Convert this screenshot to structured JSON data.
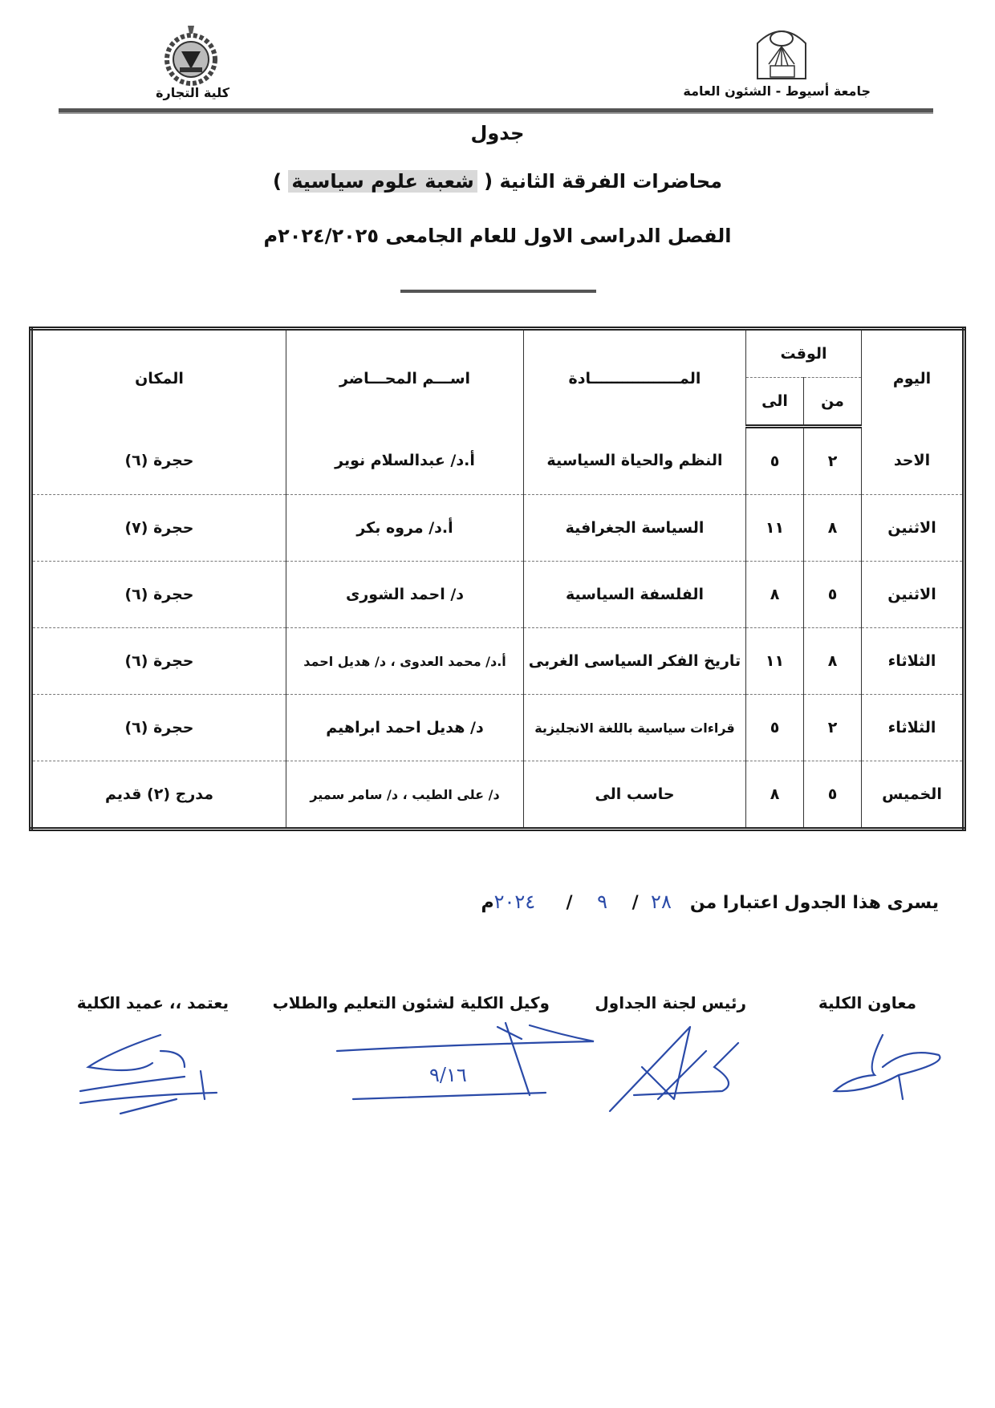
{
  "header": {
    "faculty_name": "كلية التجارة",
    "university_name": "جامعة أسيوط - الشئون العامة",
    "faculty_logo_icon": "faculty-of-commerce-emblem",
    "university_logo_icon": "assiut-university-logo",
    "university_logo_text": "جامعة أسيوط"
  },
  "titles": {
    "line1": "جدول",
    "line2_prefix": "محاضرات الفرقة الثانية (",
    "line2_highlight": "شعبة علوم سياسية",
    "line2_suffix": ")",
    "line3": "الفصل الدراسى الاول للعام الجامعى ٢٠٢٤/٢٠٢٥م"
  },
  "table": {
    "headers": {
      "day": "اليوم",
      "time": "الوقت",
      "from": "من",
      "to": "الى",
      "subject": "المـــــــــــــــــادة",
      "lecturer": "اســـم المحـــاضر",
      "location": "المكان"
    },
    "rows": [
      {
        "day": "الاحد",
        "from": "٢",
        "to": "٥",
        "subject": "النظم والحياة السياسية",
        "lecturer": "أ.د/ عبدالسلام نوير",
        "location": "حجرة (٦)"
      },
      {
        "day": "الاثنين",
        "from": "٨",
        "to": "١١",
        "subject": "السياسة الجغرافية",
        "lecturer": "أ.د/ مروه بكر",
        "location": "حجرة (٧)"
      },
      {
        "day": "الاثنين",
        "from": "٥",
        "to": "٨",
        "subject": "الفلسفة السياسية",
        "lecturer": "د/ احمد الشورى",
        "location": "حجرة (٦)"
      },
      {
        "day": "الثلاثاء",
        "from": "٨",
        "to": "١١",
        "subject": "تاريخ الفكر السياسى الغربى",
        "lecturer": "أ.د/ محمد العدوى ، د/ هديل احمد",
        "location": "حجرة (٦)"
      },
      {
        "day": "الثلاثاء",
        "from": "٢",
        "to": "٥",
        "subject": "قراءات سياسية باللغة الانجليزية",
        "lecturer": "د/ هديل احمد ابراهيم",
        "location": "حجرة (٦)"
      },
      {
        "day": "الخميس",
        "from": "٥",
        "to": "٨",
        "subject": "حاسب الى",
        "lecturer": "د/ على الطيب ، د/ سامر سمير",
        "location": "مدرج (٢) قديم"
      }
    ]
  },
  "effective": {
    "prefix": "يسرى هذا الجدول اعتبارا من",
    "day": "٢٨",
    "month": "٩",
    "year_handwritten": "٢٠٢٤",
    "year_suffix": "م",
    "separator": "/"
  },
  "signatures": [
    {
      "title": "معاون الكلية"
    },
    {
      "title": "رئيس لجنة الجداول"
    },
    {
      "title": "وكيل الكلية لشئون التعليم والطلاب",
      "handwritten_note": "٩/١٦"
    },
    {
      "title": "يعتمد ،، عميد الكلية"
    }
  ],
  "colors": {
    "ink": "#111111",
    "handwriting": "#2a4aa8",
    "highlight": "#d9d9d9"
  }
}
